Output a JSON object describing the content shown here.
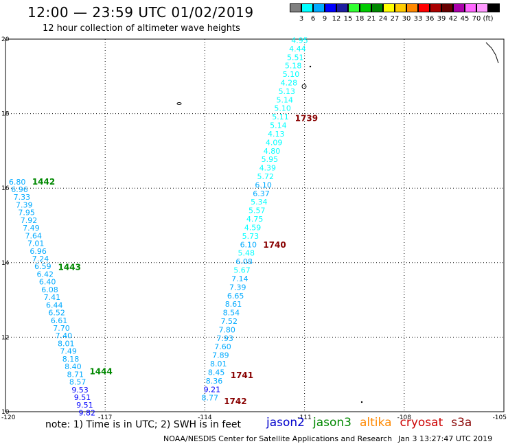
{
  "header": {
    "title": "12:00 — 23:59 UTC 01/02/2019",
    "subtitle": "12 hour collection of altimeter wave heights"
  },
  "scale": {
    "colors": [
      "#808080",
      "#00ffff",
      "#00aaff",
      "#0000ff",
      "#1e1ea0",
      "#33ff33",
      "#00cc00",
      "#008800",
      "#ffff00",
      "#ffcc00",
      "#ff8800",
      "#ff0000",
      "#aa0000",
      "#660000",
      "#aa00aa",
      "#ff66ff",
      "#ff99ff",
      "#000000"
    ],
    "labels": [
      "3",
      "6",
      "9",
      "12",
      "15",
      "18",
      "21",
      "24",
      "27",
      "30",
      "33",
      "36",
      "39",
      "42",
      "45",
      "70",
      "(ft)"
    ]
  },
  "footer": {
    "note": "note:  1) Time is in UTC;  2) SWH is in feet",
    "credit": "NOAA/NESDIS Center for Satellite Applications and Research",
    "timestamp": "Jan  3 13:27:47 UTC 2019"
  },
  "satellites": [
    {
      "name": "jason2",
      "color": "#0000cc"
    },
    {
      "name": "jason3",
      "color": "#008800"
    },
    {
      "name": "altika",
      "color": "#ff8800"
    },
    {
      "name": "cryosat",
      "color": "#cc0000"
    },
    {
      "name": "s3a",
      "color": "#880000"
    }
  ],
  "chart_data": {
    "type": "scatter",
    "xlim": [
      -120,
      -105
    ],
    "ylim": [
      10,
      20
    ],
    "x_ticks": [
      "-120",
      "-117",
      "-114",
      "-111",
      "-108",
      "-105"
    ],
    "y_ticks": [
      "20",
      "18",
      "16",
      "14",
      "12",
      "10"
    ],
    "grid": true,
    "tracks": [
      {
        "satellite": "jason3",
        "time_labels": [
          {
            "label": "1442",
            "lat": 16.1
          },
          {
            "label": "1443",
            "lat": 13.8
          },
          {
            "label": "1444",
            "lat": 11.0
          }
        ],
        "start": {
          "lon": -119.9,
          "lat": 16.1
        },
        "end": {
          "lon": -117.8,
          "lat": 9.9
        },
        "values": [
          "6.80",
          "6.96",
          "7.33",
          "7.39",
          "7.95",
          "7.92",
          "7.49",
          "7.64",
          "7.01",
          "6.96",
          "7.24",
          "6.59",
          "6.42",
          "6.40",
          "6.08",
          "7.41",
          "6.44",
          "6.52",
          "6.61",
          "7.70",
          "7.40",
          "8.01",
          "7.49",
          "8.18",
          "8.40",
          "8.71",
          "8.57",
          "9.53",
          "9.51",
          "9.51",
          "9.82"
        ]
      },
      {
        "satellite": "s3a",
        "time_labels": [
          {
            "label": "1739",
            "lat": 17.8
          },
          {
            "label": "1740",
            "lat": 14.4
          },
          {
            "label": "1741",
            "lat": 10.9
          },
          {
            "label": "1742",
            "lat": 10.2
          }
        ],
        "start": {
          "lon": -111.4,
          "lat": 19.9
        },
        "end": {
          "lon": -114.1,
          "lat": 10.3
        },
        "values": [
          "4.95",
          "4.44",
          "5.51",
          "5.18",
          "5.10",
          "4.28",
          "5.13",
          "5.14",
          "5.10",
          "5.11",
          "5.14",
          "4.13",
          "4.09",
          "4.80",
          "5.95",
          "4.39",
          "5.72",
          "6.10",
          "6.37",
          "5.34",
          "5.57",
          "4.75",
          "4.59",
          "5.73",
          "6.10",
          "5.48",
          "6.08",
          "5.67",
          "7.14",
          "7.39",
          "6.65",
          "8.61",
          "8.54",
          "7.52",
          "7.80",
          "7.93",
          "7.60",
          "7.89",
          "8.01",
          "8.45",
          "8.36",
          "9.21",
          "8.77"
        ]
      }
    ]
  }
}
